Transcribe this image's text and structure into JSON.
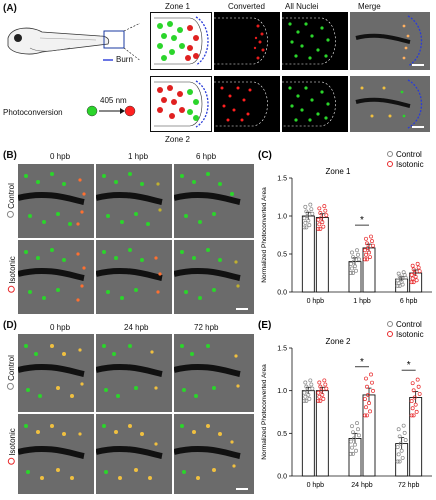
{
  "panels": {
    "A": {
      "label": "(A)",
      "burn_label": "Burn",
      "photoconversion_label": "Photoconversion",
      "wavelength": "405 nm",
      "zone1": "Zone 1",
      "zone2": "Zone 2",
      "col_converted": "Converted",
      "col_nuclei": "All Nuclei",
      "col_merge": "Merge"
    },
    "B": {
      "label": "(B)",
      "times": [
        "0 hpb",
        "1 hpb",
        "6 hpb"
      ],
      "rows": [
        "Control",
        "Isotonic"
      ]
    },
    "D": {
      "label": "(D)",
      "times": [
        "0 hpb",
        "24 hpb",
        "72 hpb"
      ],
      "rows": [
        "Control",
        "Isotonic"
      ]
    }
  },
  "chart_data": [
    {
      "panel": "(C)",
      "type": "bar",
      "title": "Zone 1",
      "ylabel": "Normalized Photoconverted Area",
      "categories": [
        "0 hpb",
        "1 hpb",
        "6 hpb"
      ],
      "ylim": [
        0,
        1.5
      ],
      "yticks": [
        "0.0",
        "0.5",
        "1.0",
        "1.5"
      ],
      "legend": [
        "Control",
        "Isotonic"
      ],
      "series": [
        {
          "name": "Control",
          "values": [
            1.0,
            0.4,
            0.17
          ],
          "errors": [
            0.05,
            0.05,
            0.03
          ],
          "color": "#888888"
        },
        {
          "name": "Isotonic",
          "values": [
            0.98,
            0.58,
            0.25
          ],
          "errors": [
            0.05,
            0.05,
            0.04
          ],
          "color": "#e8282a"
        }
      ],
      "significance": [
        {
          "category": "1 hpb",
          "mark": "*"
        }
      ]
    },
    {
      "panel": "(E)",
      "type": "bar",
      "title": "Zone 2",
      "ylabel": "Normalized Photoconverted Area",
      "categories": [
        "0 hpb",
        "24 hpb",
        "72 hpb"
      ],
      "ylim": [
        0,
        1.5
      ],
      "yticks": [
        "0.0",
        "0.5",
        "1.0",
        "1.5"
      ],
      "legend": [
        "Control",
        "Isotonic"
      ],
      "series": [
        {
          "name": "Control",
          "values": [
            1.0,
            0.44,
            0.38
          ],
          "errors": [
            0.04,
            0.06,
            0.07
          ],
          "color": "#888888"
        },
        {
          "name": "Isotonic",
          "values": [
            1.0,
            0.95,
            0.92
          ],
          "errors": [
            0.04,
            0.08,
            0.07
          ],
          "color": "#e8282a"
        }
      ],
      "significance": [
        {
          "category": "24 hpb",
          "mark": "*"
        },
        {
          "category": "72 hpb",
          "mark": "*"
        }
      ]
    }
  ],
  "colors": {
    "control": "#888888",
    "isotonic": "#e8282a",
    "nuclei": "#2bd52b",
    "converted": "#ff2020",
    "burn": "#2a3cd8"
  }
}
